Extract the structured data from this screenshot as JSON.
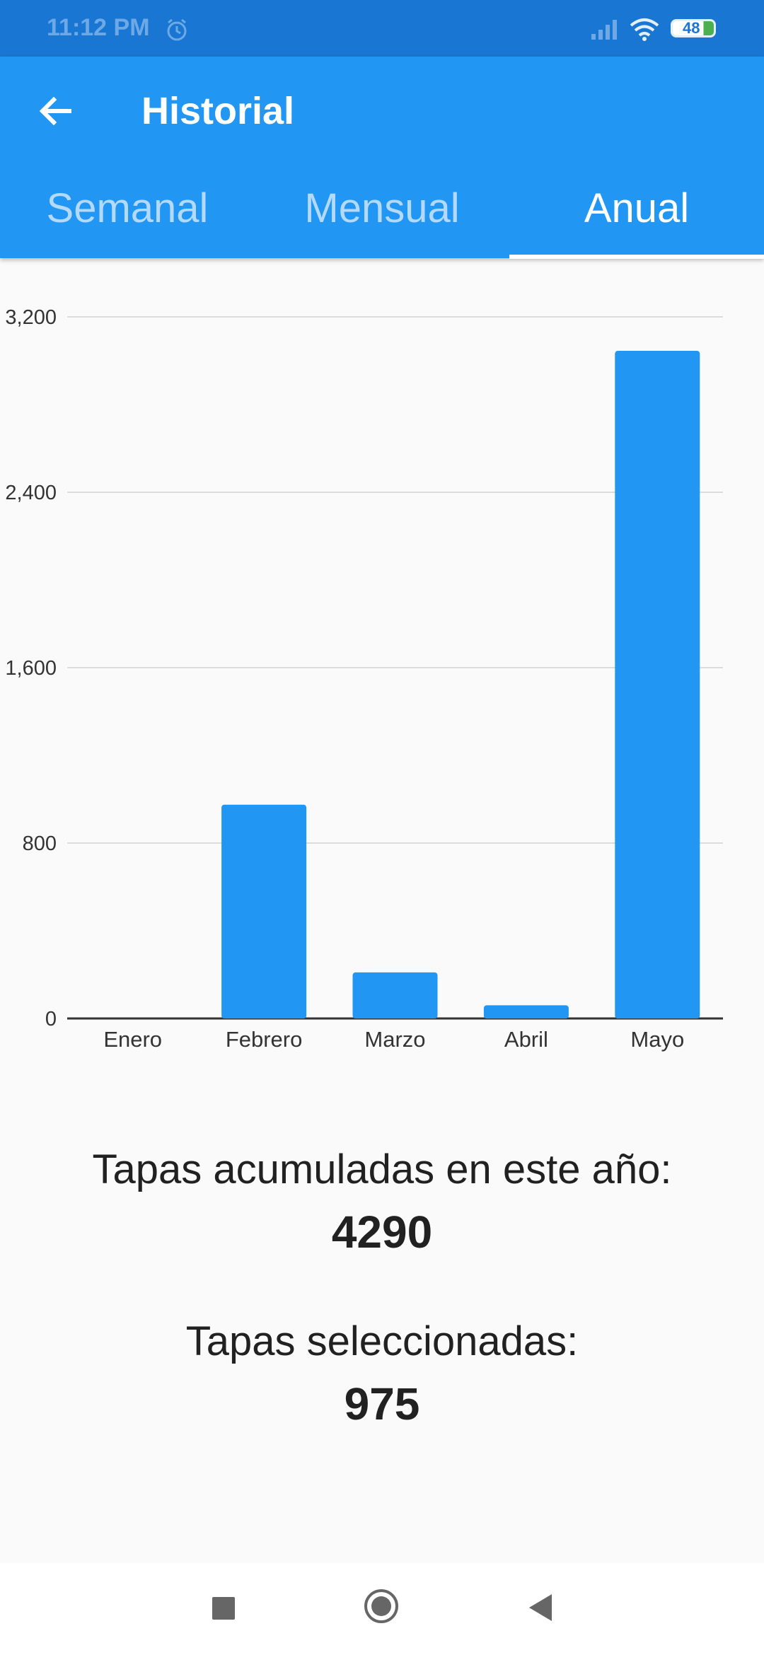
{
  "status_bar": {
    "time": "11:12 PM",
    "battery_level": "48",
    "icons": [
      "alarm-icon",
      "signal-icon",
      "wifi-icon",
      "battery-icon"
    ]
  },
  "app_bar": {
    "title": "Historial",
    "back_icon": "arrow-left-icon",
    "background_color": "#2196f3"
  },
  "tabs": [
    {
      "label": "Semanal",
      "active": false
    },
    {
      "label": "Mensual",
      "active": false
    },
    {
      "label": "Anual",
      "active": true
    }
  ],
  "chart_data": {
    "type": "bar",
    "categories": [
      "Enero",
      "Febrero",
      "Marzo",
      "Abril",
      "Mayo"
    ],
    "values": [
      0,
      975,
      210,
      60,
      3045
    ],
    "ylim": [
      0,
      3200
    ],
    "y_ticks": [
      "0",
      "800",
      "1,600",
      "2,400",
      "3,200"
    ],
    "y_tick_values": [
      0,
      800,
      1600,
      2400,
      3200
    ],
    "grid": true,
    "bar_color": "#2196f3",
    "title": "",
    "xlabel": "",
    "ylabel": ""
  },
  "stats": {
    "accumulated_label": "Tapas acumuladas en este año:",
    "accumulated_value": "4290",
    "selected_label": "Tapas seleccionadas:",
    "selected_value": "975"
  },
  "nav_bar": {
    "icons": [
      "recent-apps-icon",
      "home-icon",
      "back-triangle-icon"
    ]
  }
}
